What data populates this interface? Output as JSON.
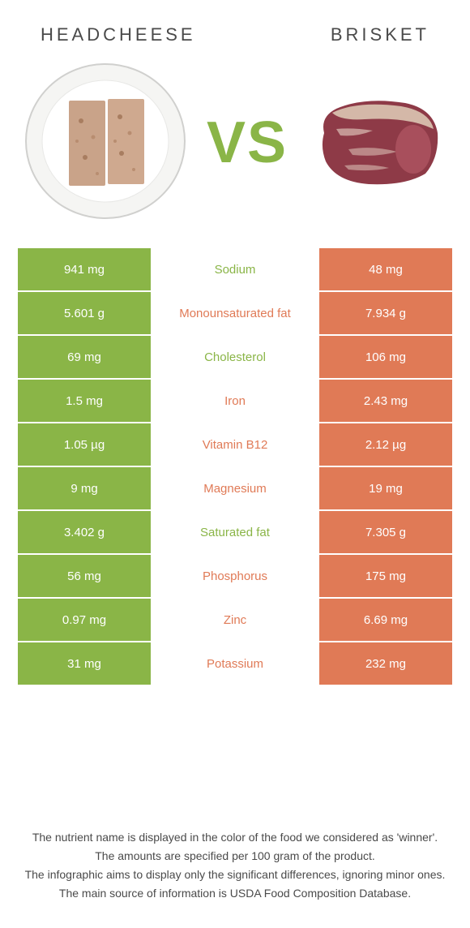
{
  "header": {
    "left_title": "Headcheese",
    "right_title": "Brisket"
  },
  "vs_label": "VS",
  "colors": {
    "left": "#8ab547",
    "right": "#e07a56",
    "text_dark": "#4a4a4a"
  },
  "rows": [
    {
      "left": "941 mg",
      "name": "Sodium",
      "right": "48 mg",
      "winner": "left"
    },
    {
      "left": "5.601 g",
      "name": "Monounsaturated fat",
      "right": "7.934 g",
      "winner": "right"
    },
    {
      "left": "69 mg",
      "name": "Cholesterol",
      "right": "106 mg",
      "winner": "left"
    },
    {
      "left": "1.5 mg",
      "name": "Iron",
      "right": "2.43 mg",
      "winner": "right"
    },
    {
      "left": "1.05 µg",
      "name": "Vitamin B12",
      "right": "2.12 µg",
      "winner": "right"
    },
    {
      "left": "9 mg",
      "name": "Magnesium",
      "right": "19 mg",
      "winner": "right"
    },
    {
      "left": "3.402 g",
      "name": "Saturated fat",
      "right": "7.305 g",
      "winner": "left"
    },
    {
      "left": "56 mg",
      "name": "Phosphorus",
      "right": "175 mg",
      "winner": "right"
    },
    {
      "left": "0.97 mg",
      "name": "Zinc",
      "right": "6.69 mg",
      "winner": "right"
    },
    {
      "left": "31 mg",
      "name": "Potassium",
      "right": "232 mg",
      "winner": "right"
    }
  ],
  "footer": {
    "line1": "The nutrient name is displayed in the color of the food we considered as 'winner'.",
    "line2": "The amounts are specified per 100 gram of the product.",
    "line3": "The infographic aims to display only the significant differences, ignoring minor ones.",
    "line4": "The main source of information is USDA Food Composition Database."
  }
}
